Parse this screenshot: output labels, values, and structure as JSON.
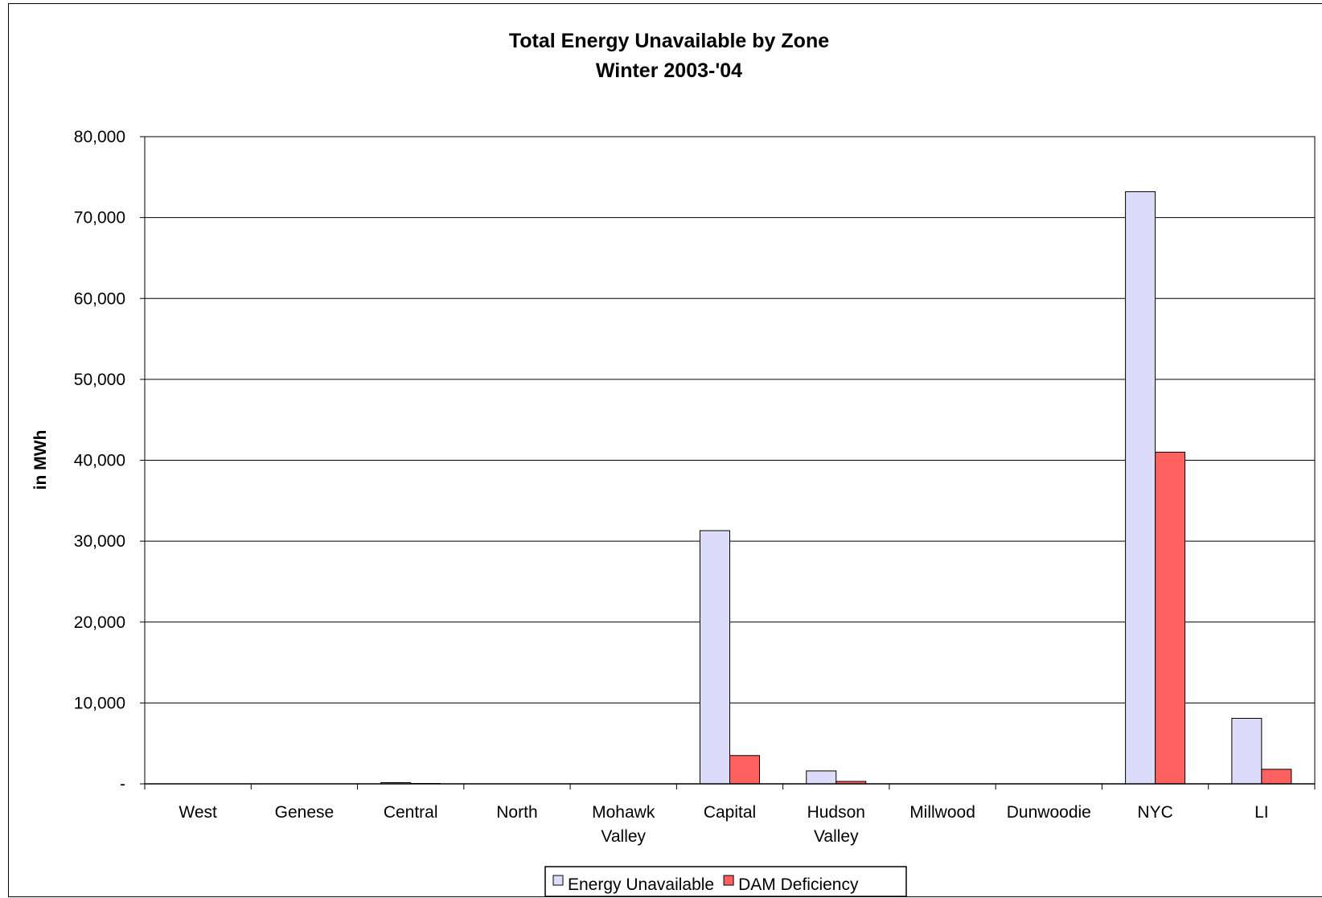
{
  "chart_data": {
    "type": "bar",
    "title": "Total Energy Unavailable by Zone",
    "subtitle": "Winter 2003-'04",
    "xlabel": "",
    "ylabel": "in MWh",
    "ylim": [
      0,
      80000
    ],
    "yticks": [
      {
        "value": 0,
        "label": "-"
      },
      {
        "value": 10000,
        "label": "10,000"
      },
      {
        "value": 20000,
        "label": "20,000"
      },
      {
        "value": 30000,
        "label": "30,000"
      },
      {
        "value": 40000,
        "label": "40,000"
      },
      {
        "value": 50000,
        "label": "50,000"
      },
      {
        "value": 60000,
        "label": "60,000"
      },
      {
        "value": 70000,
        "label": "70,000"
      },
      {
        "value": 80000,
        "label": "80,000"
      }
    ],
    "categories": [
      [
        "West"
      ],
      [
        "Genese"
      ],
      [
        "Central"
      ],
      [
        "North"
      ],
      [
        "Mohawk",
        "Valley"
      ],
      [
        "Capital"
      ],
      [
        "Hudson",
        "Valley"
      ],
      [
        "Millwood"
      ],
      [
        "Dunwoodie"
      ],
      [
        "NYC"
      ],
      [
        "LI"
      ]
    ],
    "series": [
      {
        "name": "Energy Unavailable",
        "color": "#dcdcfa",
        "values": [
          0,
          0,
          150,
          0,
          0,
          31300,
          1600,
          0,
          0,
          73200,
          8100
        ]
      },
      {
        "name": "DAM Deficiency",
        "color": "#ff6060",
        "values": [
          0,
          0,
          50,
          0,
          0,
          3500,
          300,
          0,
          0,
          41000,
          1800
        ]
      }
    ],
    "grid": true,
    "legend_position": "bottom"
  }
}
